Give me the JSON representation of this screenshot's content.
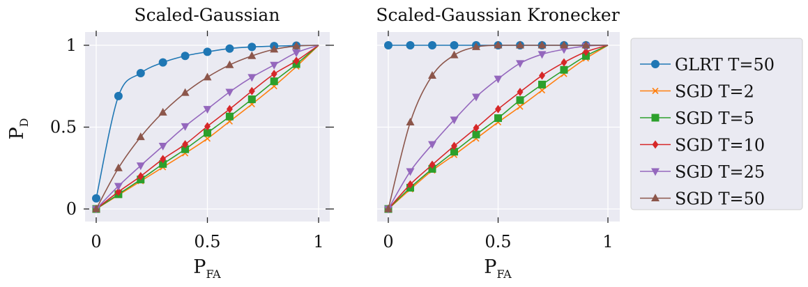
{
  "chart_data": [
    {
      "type": "line",
      "title": "Scaled-Gaussian",
      "xlabel": "P",
      "xlabel_sub": "FA",
      "ylabel": "P",
      "ylabel_sub": "D",
      "xlim": [
        0,
        1
      ],
      "ylim": [
        0,
        1
      ],
      "xticks": [
        "0",
        "0.5",
        "1"
      ],
      "yticks": [
        "0",
        "0.5",
        "1"
      ],
      "grid": true,
      "series": [
        {
          "name": "GLRT T=50",
          "color": "#1f77b4",
          "marker": "circle",
          "x": [
            0,
            0.1,
            0.2,
            0.3,
            0.4,
            0.5,
            0.6,
            0.7,
            0.8,
            0.9,
            1.0
          ],
          "y": [
            0.065,
            0.69,
            0.83,
            0.895,
            0.935,
            0.96,
            0.98,
            0.99,
            0.995,
            0.998,
            1.0
          ]
        },
        {
          "name": "SGD T=2",
          "color": "#ff7f0e",
          "marker": "x",
          "x": [
            0,
            0.1,
            0.2,
            0.3,
            0.4,
            0.5,
            0.6,
            0.7,
            0.8,
            0.9,
            1.0
          ],
          "y": [
            0,
            0.085,
            0.17,
            0.255,
            0.34,
            0.43,
            0.535,
            0.64,
            0.75,
            0.87,
            1.0
          ]
        },
        {
          "name": "SGD T=5",
          "color": "#2ca02c",
          "marker": "square",
          "x": [
            0,
            0.1,
            0.2,
            0.3,
            0.4,
            0.5,
            0.6,
            0.7,
            0.8,
            0.9,
            1.0
          ],
          "y": [
            0,
            0.09,
            0.18,
            0.275,
            0.365,
            0.465,
            0.565,
            0.67,
            0.78,
            0.885,
            1.0
          ]
        },
        {
          "name": "SGD T=10",
          "color": "#d62728",
          "marker": "diamond",
          "x": [
            0,
            0.1,
            0.2,
            0.3,
            0.4,
            0.5,
            0.6,
            0.7,
            0.8,
            0.9,
            1.0
          ],
          "y": [
            0,
            0.105,
            0.2,
            0.305,
            0.395,
            0.505,
            0.61,
            0.72,
            0.825,
            0.905,
            1.0
          ]
        },
        {
          "name": "SGD T=25",
          "color": "#9467bd",
          "marker": "triangle-down",
          "x": [
            0,
            0.1,
            0.2,
            0.3,
            0.4,
            0.5,
            0.6,
            0.7,
            0.8,
            0.9,
            1.0
          ],
          "y": [
            0,
            0.14,
            0.265,
            0.385,
            0.505,
            0.61,
            0.715,
            0.805,
            0.88,
            0.955,
            1.0
          ]
        },
        {
          "name": "SGD T=50",
          "color": "#8c564b",
          "marker": "triangle-up",
          "x": [
            0,
            0.1,
            0.2,
            0.3,
            0.4,
            0.5,
            0.6,
            0.7,
            0.8,
            0.9,
            1.0
          ],
          "y": [
            0,
            0.25,
            0.44,
            0.59,
            0.71,
            0.805,
            0.88,
            0.935,
            0.975,
            0.995,
            1.0
          ]
        }
      ]
    },
    {
      "type": "line",
      "title": "Scaled-Gaussian Kronecker",
      "xlabel": "P",
      "xlabel_sub": "FA",
      "ylabel": "",
      "ylabel_sub": "",
      "xlim": [
        0,
        1
      ],
      "ylim": [
        0,
        1
      ],
      "xticks": [
        "0",
        "0.5",
        "1"
      ],
      "yticks": [],
      "grid": true,
      "series": [
        {
          "name": "GLRT T=50",
          "color": "#1f77b4",
          "marker": "circle",
          "x": [
            0,
            0.1,
            0.2,
            0.3,
            0.4,
            0.5,
            0.6,
            0.7,
            0.8,
            0.9,
            1.0
          ],
          "y": [
            1,
            1,
            1,
            1,
            1,
            1,
            1,
            1,
            1,
            1,
            1
          ]
        },
        {
          "name": "SGD T=2",
          "color": "#ff7f0e",
          "marker": "x",
          "x": [
            0,
            0.1,
            0.2,
            0.3,
            0.4,
            0.5,
            0.6,
            0.7,
            0.8,
            0.9,
            1.0
          ],
          "y": [
            0,
            0.12,
            0.235,
            0.33,
            0.43,
            0.53,
            0.625,
            0.725,
            0.825,
            0.92,
            1.0
          ]
        },
        {
          "name": "SGD T=5",
          "color": "#2ca02c",
          "marker": "square",
          "x": [
            0,
            0.1,
            0.2,
            0.3,
            0.4,
            0.5,
            0.6,
            0.7,
            0.8,
            0.9,
            1.0
          ],
          "y": [
            0,
            0.13,
            0.245,
            0.35,
            0.455,
            0.555,
            0.665,
            0.76,
            0.85,
            0.935,
            1.0
          ]
        },
        {
          "name": "SGD T=10",
          "color": "#d62728",
          "marker": "diamond",
          "x": [
            0,
            0.1,
            0.2,
            0.3,
            0.4,
            0.5,
            0.6,
            0.7,
            0.8,
            0.9,
            1.0
          ],
          "y": [
            0,
            0.15,
            0.27,
            0.385,
            0.495,
            0.61,
            0.715,
            0.815,
            0.895,
            0.96,
            1.0
          ]
        },
        {
          "name": "SGD T=25",
          "color": "#9467bd",
          "marker": "triangle-down",
          "x": [
            0,
            0.1,
            0.2,
            0.3,
            0.4,
            0.5,
            0.6,
            0.7,
            0.8,
            0.9,
            1.0
          ],
          "y": [
            0,
            0.23,
            0.395,
            0.545,
            0.685,
            0.795,
            0.89,
            0.945,
            0.975,
            0.995,
            1.0
          ]
        },
        {
          "name": "SGD T=50",
          "color": "#8c564b",
          "marker": "triangle-up",
          "x": [
            0,
            0.1,
            0.2,
            0.3,
            0.4,
            0.5,
            0.6,
            0.7,
            0.8,
            0.9,
            1.0
          ],
          "y": [
            0,
            0.53,
            0.815,
            0.94,
            0.99,
            1.0,
            1.0,
            1.0,
            1.0,
            1.0,
            1.0
          ]
        }
      ]
    }
  ],
  "legend": {
    "placement": "right",
    "entries": [
      "GLRT T=50",
      "SGD T=2",
      "SGD T=5",
      "SGD T=10",
      "SGD T=25",
      "SGD T=50"
    ]
  }
}
